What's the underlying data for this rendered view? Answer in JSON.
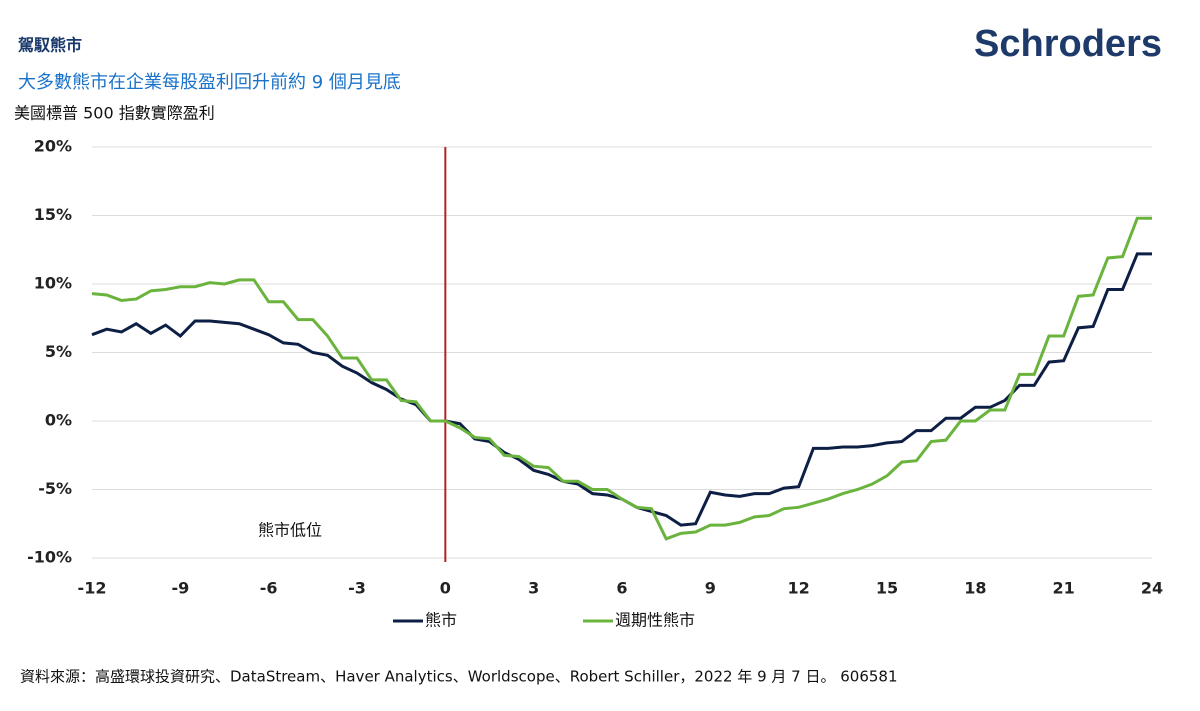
{
  "brand": "Schroders",
  "chart_data": {
    "type": "line",
    "title": "駕馭熊市",
    "subtitle": "大多數熊市在企業每股盈利回升前約 9 個月見底",
    "y_label": "美國標普 500 指數實際盈利",
    "annotation": "熊市低位",
    "vline": 0,
    "source": "資料來源：高盛環球投資研究、DataStream、Haver Analytics、Worldscope、Robert Schiller，2022 年 9 月 7 日。 606581",
    "x": [
      -12,
      -11.5,
      -11,
      -10.5,
      -10,
      -9.5,
      -9,
      -8.5,
      -8,
      -7.5,
      -7,
      -6.5,
      -6,
      -5.5,
      -5,
      -4.5,
      -4,
      -3.5,
      -3,
      -2.5,
      -2,
      -1.5,
      -1,
      -0.5,
      0,
      0.5,
      1,
      1.5,
      2,
      2.5,
      3,
      3.5,
      4,
      4.5,
      5,
      5.5,
      6,
      6.5,
      7,
      7.5,
      8,
      8.5,
      9,
      9.5,
      10,
      10.5,
      11,
      11.5,
      12,
      12.5,
      13,
      13.5,
      14,
      14.5,
      15,
      15.5,
      16,
      16.5,
      17,
      17.5,
      18,
      18.5,
      19,
      19.5,
      20,
      20.5,
      21,
      21.5,
      22,
      22.5,
      23,
      23.5,
      24
    ],
    "series": [
      {
        "name": "熊市",
        "color": "#0d1f44",
        "values": [
          6.3,
          6.7,
          6.5,
          7.1,
          6.4,
          7.0,
          6.2,
          7.3,
          7.3,
          7.2,
          7.1,
          6.7,
          6.3,
          5.7,
          5.6,
          5.0,
          4.8,
          4.0,
          3.5,
          2.8,
          2.3,
          1.6,
          1.2,
          0,
          0,
          -0.2,
          -1.3,
          -1.5,
          -2.3,
          -2.8,
          -3.6,
          -3.9,
          -4.4,
          -4.6,
          -5.3,
          -5.4,
          -5.7,
          -6.3,
          -6.6,
          -6.9,
          -7.6,
          -7.5,
          -5.2,
          -5.4,
          -5.5,
          -5.3,
          -5.3,
          -4.9,
          -4.8,
          -2.0,
          -2.0,
          -1.9,
          -1.9,
          -1.8,
          -1.6,
          -1.5,
          -0.7,
          -0.7,
          0.2,
          0.2,
          1.0,
          1.0,
          1.5,
          2.6,
          2.6,
          4.3,
          4.4,
          6.8,
          6.9,
          9.6,
          9.6,
          12.2,
          12.2
        ]
      },
      {
        "name": "週期性熊市",
        "color": "#6ab43e",
        "values": [
          9.3,
          9.2,
          8.8,
          8.9,
          9.5,
          9.6,
          9.8,
          9.8,
          10.1,
          10.0,
          10.3,
          10.3,
          8.7,
          8.7,
          7.4,
          7.4,
          6.2,
          4.6,
          4.6,
          3.0,
          3.0,
          1.5,
          1.4,
          0,
          0,
          -0.5,
          -1.2,
          -1.3,
          -2.5,
          -2.6,
          -3.3,
          -3.4,
          -4.4,
          -4.4,
          -5.0,
          -5.0,
          -5.7,
          -6.3,
          -6.4,
          -8.6,
          -8.2,
          -8.1,
          -7.6,
          -7.6,
          -7.4,
          -7.0,
          -6.9,
          -6.4,
          -6.3,
          -6.0,
          -5.7,
          -5.3,
          -5.0,
          -4.6,
          -4.0,
          -3.0,
          -2.9,
          -1.5,
          -1.4,
          0,
          0,
          0.8,
          0.8,
          3.4,
          3.4,
          6.2,
          6.2,
          9.1,
          9.2,
          11.9,
          12.0,
          14.8,
          14.8
        ]
      }
    ],
    "xlim": [
      -12,
      24
    ],
    "xticks": [
      -12,
      -9,
      -6,
      -3,
      0,
      3,
      6,
      9,
      12,
      15,
      18,
      21,
      24
    ],
    "ylim": [
      -10,
      20
    ],
    "yticks": [
      {
        "value": -10,
        "label": "-10%"
      },
      {
        "value": -5,
        "label": "-5%"
      },
      {
        "value": 0,
        "label": "0%"
      },
      {
        "value": 5,
        "label": "5%"
      },
      {
        "value": 10,
        "label": "10%"
      },
      {
        "value": 15,
        "label": "15%"
      },
      {
        "value": 20,
        "label": "20%"
      }
    ],
    "grid": true
  }
}
